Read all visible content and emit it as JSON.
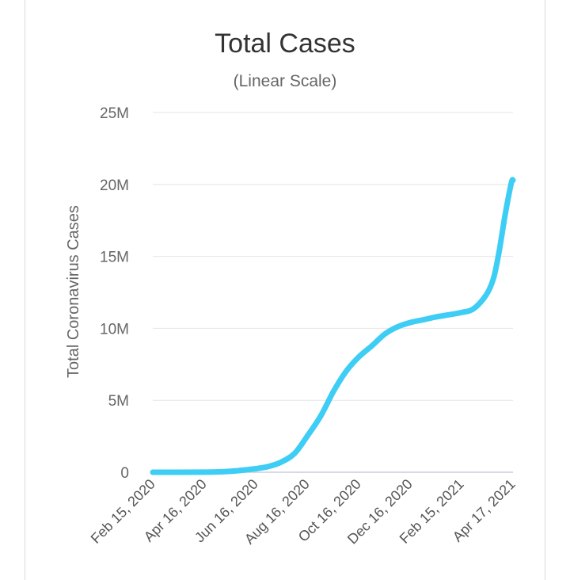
{
  "chart_data": {
    "type": "line",
    "title": "Total Cases",
    "subtitle": "(Linear Scale)",
    "xlabel": "",
    "ylabel": "Total Coronavirus Cases",
    "ylim": [
      0,
      25000000
    ],
    "yticks": [
      0,
      5000000,
      10000000,
      15000000,
      20000000,
      25000000
    ],
    "ytick_labels": [
      "0",
      "5M",
      "10M",
      "15M",
      "20M",
      "25M"
    ],
    "xtick_labels": [
      "Feb 15, 2020",
      "Apr 16, 2020",
      "Jun 16, 2020",
      "Aug 16, 2020",
      "Oct 16, 2020",
      "Dec 16, 2020",
      "Feb 15, 2021",
      "Apr 17, 2021"
    ],
    "xtick_dates": [
      "2020-02-15",
      "2020-04-16",
      "2020-06-16",
      "2020-08-16",
      "2020-10-16",
      "2020-12-16",
      "2021-02-15",
      "2021-04-17"
    ],
    "grid": true,
    "series": [
      {
        "color": "#3ecdf5",
        "points": [
          [
            "2020-02-15",
            0
          ],
          [
            "2020-04-16",
            8000
          ],
          [
            "2020-05-16",
            60000
          ],
          [
            "2020-06-16",
            250000
          ],
          [
            "2020-07-01",
            400000
          ],
          [
            "2020-07-16",
            700000
          ],
          [
            "2020-08-01",
            1300000
          ],
          [
            "2020-08-16",
            2500000
          ],
          [
            "2020-09-01",
            3900000
          ],
          [
            "2020-09-16",
            5600000
          ],
          [
            "2020-10-01",
            7000000
          ],
          [
            "2020-10-16",
            8000000
          ],
          [
            "2020-11-01",
            8800000
          ],
          [
            "2020-11-16",
            9600000
          ],
          [
            "2020-12-01",
            10100000
          ],
          [
            "2020-12-16",
            10400000
          ],
          [
            "2021-01-01",
            10600000
          ],
          [
            "2021-01-16",
            10800000
          ],
          [
            "2021-02-01",
            10950000
          ],
          [
            "2021-02-15",
            11100000
          ],
          [
            "2021-03-01",
            11350000
          ],
          [
            "2021-03-16",
            12300000
          ],
          [
            "2021-03-25",
            13500000
          ],
          [
            "2021-04-01",
            15500000
          ],
          [
            "2021-04-08",
            18000000
          ],
          [
            "2021-04-15",
            20100000
          ],
          [
            "2021-04-17",
            20300000
          ]
        ]
      }
    ]
  }
}
